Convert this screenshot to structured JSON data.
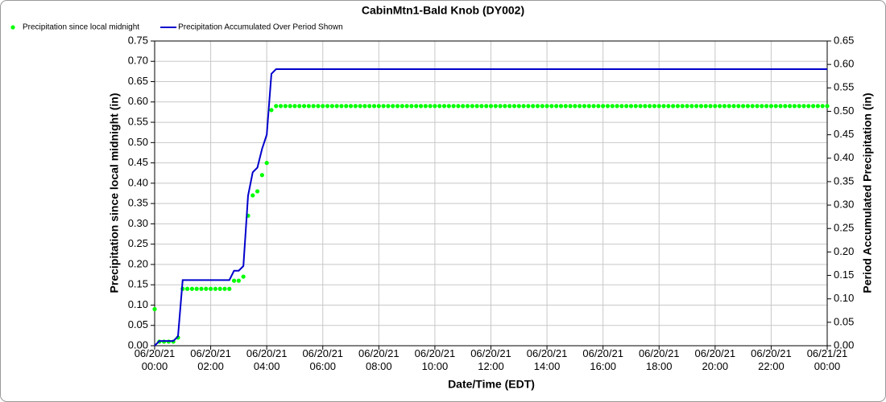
{
  "chart_data": {
    "type": "line",
    "title": "CabinMtn1-Bald Knob (DY002)",
    "xlabel": "Date/Time (EDT)",
    "ylabel": "Precipitation since local midnight (in)",
    "y2label": "Period Accumulated Precipitation (in)",
    "grid": true,
    "legend": "top-left",
    "xlim": [
      "06/20/21 00:00",
      "06/21/21 00:00"
    ],
    "xticks": [
      "06/20/21 00:00",
      "06/20/21 02:00",
      "06/20/21 04:00",
      "06/20/21 06:00",
      "06/20/21 08:00",
      "06/20/21 10:00",
      "06/20/21 12:00",
      "06/20/21 14:00",
      "06/20/21 16:00",
      "06/20/21 18:00",
      "06/20/21 20:00",
      "06/20/21 22:00",
      "06/21/21 00:00"
    ],
    "ylim": [
      0,
      0.75
    ],
    "yticks": [
      {
        "value": 0,
        "label": "0.00"
      },
      0.05,
      {
        "value": 0.1,
        "label": "0.10"
      },
      0.15,
      {
        "value": 0.2,
        "label": "0.20"
      },
      0.25,
      {
        "value": 0.3,
        "label": "0.30"
      },
      0.35,
      {
        "value": 0.4,
        "label": "0.40"
      },
      0.45,
      {
        "value": 0.5,
        "label": "0.50"
      },
      0.55,
      {
        "value": 0.6,
        "label": "0.60"
      },
      0.65,
      {
        "value": 0.7,
        "label": "0.70"
      },
      0.75
    ],
    "y2lim": [
      0,
      0.65
    ],
    "y2ticks": [
      {
        "value": 0,
        "label": "0.00"
      },
      0.05,
      {
        "value": 0.1,
        "label": "0.10"
      },
      0.15,
      {
        "value": 0.2,
        "label": "0.20"
      },
      0.25,
      {
        "value": 0.3,
        "label": "0.30"
      },
      0.35,
      {
        "value": 0.4,
        "label": "0.40"
      },
      0.45,
      {
        "value": 0.5,
        "label": "0.50"
      },
      0.55,
      {
        "value": 0.6,
        "label": "0.60"
      },
      0.65
    ],
    "x": [
      "06/20/21 00:00",
      "06/20/21 00:10",
      "06/20/21 00:20",
      "06/20/21 00:30",
      "06/20/21 00:40",
      "06/20/21 00:50",
      "06/20/21 01:00",
      "06/20/21 01:10",
      "06/20/21 01:20",
      "06/20/21 01:30",
      "06/20/21 01:40",
      "06/20/21 01:50",
      "06/20/21 02:00",
      "06/20/21 02:10",
      "06/20/21 02:20",
      "06/20/21 02:30",
      "06/20/21 02:40",
      "06/20/21 02:50",
      "06/20/21 03:00",
      "06/20/21 03:10",
      "06/20/21 03:20",
      "06/20/21 03:30",
      "06/20/21 03:40",
      "06/20/21 03:50",
      "06/20/21 04:00",
      "06/20/21 04:10",
      "06/20/21 04:20",
      "06/20/21 04:30",
      "06/20/21 04:40",
      "06/20/21 04:50",
      "06/20/21 05:00",
      "06/20/21 05:10",
      "06/20/21 05:20",
      "06/20/21 05:30",
      "06/20/21 05:40",
      "06/20/21 05:50",
      "06/20/21 06:00",
      "06/20/21 06:10",
      "06/20/21 06:20",
      "06/20/21 06:30",
      "06/20/21 06:40",
      "06/20/21 06:50",
      "06/20/21 07:00",
      "06/20/21 07:10",
      "06/20/21 07:20",
      "06/20/21 07:30",
      "06/20/21 07:40",
      "06/20/21 07:50",
      "06/20/21 08:00",
      "06/20/21 08:10",
      "06/20/21 08:20",
      "06/20/21 08:30",
      "06/20/21 08:40",
      "06/20/21 08:50",
      "06/20/21 09:00",
      "06/20/21 09:10",
      "06/20/21 09:20",
      "06/20/21 09:30",
      "06/20/21 09:40",
      "06/20/21 09:50",
      "06/20/21 10:00",
      "06/20/21 10:10",
      "06/20/21 10:20",
      "06/20/21 10:30",
      "06/20/21 10:40",
      "06/20/21 10:50",
      "06/20/21 11:00",
      "06/20/21 11:10",
      "06/20/21 11:20",
      "06/20/21 11:30",
      "06/20/21 11:40",
      "06/20/21 11:50",
      "06/20/21 12:00",
      "06/20/21 12:10",
      "06/20/21 12:20",
      "06/20/21 12:30",
      "06/20/21 12:40",
      "06/20/21 12:50",
      "06/20/21 13:00",
      "06/20/21 13:10",
      "06/20/21 13:20",
      "06/20/21 13:30",
      "06/20/21 13:40",
      "06/20/21 13:50",
      "06/20/21 14:00",
      "06/20/21 14:10",
      "06/20/21 14:20",
      "06/20/21 14:30",
      "06/20/21 14:40",
      "06/20/21 14:50",
      "06/20/21 15:00",
      "06/20/21 15:10",
      "06/20/21 15:20",
      "06/20/21 15:30",
      "06/20/21 15:40",
      "06/20/21 15:50",
      "06/20/21 16:00",
      "06/20/21 16:10",
      "06/20/21 16:20",
      "06/20/21 16:30",
      "06/20/21 16:40",
      "06/20/21 16:50",
      "06/20/21 17:00",
      "06/20/21 17:10",
      "06/20/21 17:20",
      "06/20/21 17:30",
      "06/20/21 17:40",
      "06/20/21 17:50",
      "06/20/21 18:00",
      "06/20/21 18:10",
      "06/20/21 18:20",
      "06/20/21 18:30",
      "06/20/21 18:40",
      "06/20/21 18:50",
      "06/20/21 19:00",
      "06/20/21 19:10",
      "06/20/21 19:20",
      "06/20/21 19:30",
      "06/20/21 19:40",
      "06/20/21 19:50",
      "06/20/21 20:00",
      "06/20/21 20:10",
      "06/20/21 20:20",
      "06/20/21 20:30",
      "06/20/21 20:40",
      "06/20/21 20:50",
      "06/20/21 21:00",
      "06/20/21 21:10",
      "06/20/21 21:20",
      "06/20/21 21:30",
      "06/20/21 21:40",
      "06/20/21 21:50",
      "06/20/21 22:00",
      "06/20/21 22:10",
      "06/20/21 22:20",
      "06/20/21 22:30",
      "06/20/21 22:40",
      "06/20/21 22:50",
      "06/20/21 23:00",
      "06/20/21 23:10",
      "06/20/21 23:20",
      "06/20/21 23:30",
      "06/20/21 23:40",
      "06/20/21 23:50",
      "06/21/21 00:00"
    ],
    "series": [
      {
        "name": "Precipitation since local midnight",
        "color": "#00ff00",
        "mode": "markers",
        "values": [
          0.09,
          0.01,
          0.01,
          0.01,
          0.01,
          0.02,
          0.14,
          0.14,
          0.14,
          0.14,
          0.14,
          0.14,
          0.14,
          0.14,
          0.14,
          0.14,
          0.14,
          0.16,
          0.16,
          0.17,
          0.32,
          0.37,
          0.38,
          0.42,
          0.45,
          0.58,
          0.59,
          0.59,
          0.59,
          0.59,
          0.59,
          0.59,
          0.59,
          0.59,
          0.59,
          0.59,
          0.59,
          0.59,
          0.59,
          0.59,
          0.59,
          0.59,
          0.59,
          0.59,
          0.59,
          0.59,
          0.59,
          0.59,
          0.59,
          0.59,
          0.59,
          0.59,
          0.59,
          0.59,
          0.59,
          0.59,
          0.59,
          0.59,
          0.59,
          0.59,
          0.59,
          0.59,
          0.59,
          0.59,
          0.59,
          0.59,
          0.59,
          0.59,
          0.59,
          0.59,
          0.59,
          0.59,
          0.59,
          0.59,
          0.59,
          0.59,
          0.59,
          0.59,
          0.59,
          0.59,
          0.59,
          0.59,
          0.59,
          0.59,
          0.59,
          0.59,
          0.59,
          0.59,
          0.59,
          0.59,
          0.59,
          0.59,
          0.59,
          0.59,
          0.59,
          0.59,
          0.59,
          0.59,
          0.59,
          0.59,
          0.59,
          0.59,
          0.59,
          0.59,
          0.59,
          0.59,
          0.59,
          0.59,
          0.59,
          0.59,
          0.59,
          0.59,
          0.59,
          0.59,
          0.59,
          0.59,
          0.59,
          0.59,
          0.59,
          0.59,
          0.59,
          0.59,
          0.59,
          0.59,
          0.59,
          0.59,
          0.59,
          0.59,
          0.59,
          0.59,
          0.59,
          0.59,
          0.59,
          0.59,
          0.59,
          0.59,
          0.59,
          0.59,
          0.59,
          0.59,
          0.59,
          0.59,
          0.59,
          0.59,
          0.59
        ]
      },
      {
        "name": "Precipitation Accumulated Over Period Shown",
        "color": "#0000cc",
        "mode": "line",
        "axis": "y2",
        "values": [
          0,
          0.01,
          0.01,
          0.01,
          0.01,
          0.02,
          0.14,
          0.14,
          0.14,
          0.14,
          0.14,
          0.14,
          0.14,
          0.14,
          0.14,
          0.14,
          0.14,
          0.16,
          0.16,
          0.17,
          0.32,
          0.37,
          0.38,
          0.42,
          0.45,
          0.58,
          0.59,
          0.59,
          0.59,
          0.59,
          0.59,
          0.59,
          0.59,
          0.59,
          0.59,
          0.59,
          0.59,
          0.59,
          0.59,
          0.59,
          0.59,
          0.59,
          0.59,
          0.59,
          0.59,
          0.59,
          0.59,
          0.59,
          0.59,
          0.59,
          0.59,
          0.59,
          0.59,
          0.59,
          0.59,
          0.59,
          0.59,
          0.59,
          0.59,
          0.59,
          0.59,
          0.59,
          0.59,
          0.59,
          0.59,
          0.59,
          0.59,
          0.59,
          0.59,
          0.59,
          0.59,
          0.59,
          0.59,
          0.59,
          0.59,
          0.59,
          0.59,
          0.59,
          0.59,
          0.59,
          0.59,
          0.59,
          0.59,
          0.59,
          0.59,
          0.59,
          0.59,
          0.59,
          0.59,
          0.59,
          0.59,
          0.59,
          0.59,
          0.59,
          0.59,
          0.59,
          0.59,
          0.59,
          0.59,
          0.59,
          0.59,
          0.59,
          0.59,
          0.59,
          0.59,
          0.59,
          0.59,
          0.59,
          0.59,
          0.59,
          0.59,
          0.59,
          0.59,
          0.59,
          0.59,
          0.59,
          0.59,
          0.59,
          0.59,
          0.59,
          0.59,
          0.59,
          0.59,
          0.59,
          0.59,
          0.59,
          0.59,
          0.59,
          0.59,
          0.59,
          0.59,
          0.59,
          0.59,
          0.59,
          0.59,
          0.59,
          0.59,
          0.59,
          0.59,
          0.59,
          0.59,
          0.59,
          0.59,
          0.59,
          0.59
        ]
      }
    ]
  }
}
